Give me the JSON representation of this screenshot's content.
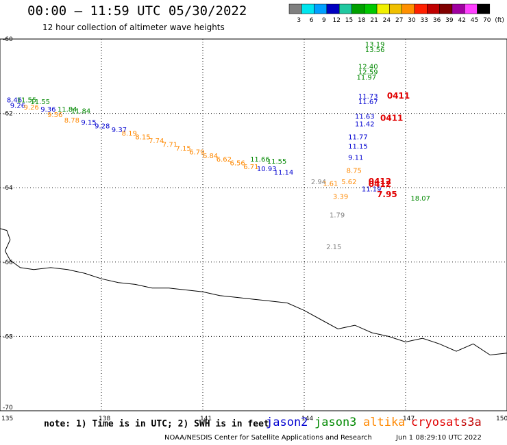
{
  "header": {
    "title": "00:00 – 11:59 UTC 05/30/2022",
    "subtitle": "12 hour collection of altimeter wave heights"
  },
  "colorbar": {
    "labels": [
      "3",
      "6",
      "9",
      "12",
      "15",
      "18",
      "21",
      "24",
      "27",
      "30",
      "33",
      "36",
      "39",
      "42",
      "45",
      "70",
      "(ft)"
    ],
    "colors": [
      "#808080",
      "#00e5ee",
      "#00a0ff",
      "#0000c0",
      "#20c8a0",
      "#00a000",
      "#00c800",
      "#f0f000",
      "#f0c000",
      "#ff9000",
      "#ff2000",
      "#c00000",
      "#800000",
      "#a000a0",
      "#ff40ff",
      "#000000"
    ]
  },
  "footer": {
    "note": "note: 1) Time is in UTC; 2) SWH is in feet",
    "credit": "NOAA/NESDIS Center for Satellite Applications and Research",
    "timestamp": "Jun  1 08:29:10 UTC 2022"
  },
  "satellites": [
    {
      "name": "jason2",
      "color": "#0000d0"
    },
    {
      "name": "jason3",
      "color": "#008800"
    },
    {
      "name": "altika",
      "color": "#ff8800"
    },
    {
      "name": "cryosat",
      "color": "#e00000"
    },
    {
      "name": "s3a",
      "color": "#c00000"
    }
  ],
  "chart_data": {
    "type": "scatter",
    "title": "00:00 – 11:59 UTC 05/30/2022",
    "subtitle": "12 hour collection of altimeter wave heights",
    "xlim": [
      135,
      150
    ],
    "ylim": [
      -70,
      -60
    ],
    "x_ticks": [
      135,
      138,
      141,
      144,
      147,
      150
    ],
    "y_ticks": [
      -60,
      -62,
      -64,
      -66,
      -68,
      -70
    ],
    "grid": true,
    "coastline": [
      [
        135,
        -65.1
      ],
      [
        135.2,
        -65.15
      ],
      [
        135.3,
        -65.4
      ],
      [
        135.15,
        -65.7
      ],
      [
        135.3,
        -65.95
      ],
      [
        135.6,
        -66.15
      ],
      [
        136.0,
        -66.2
      ],
      [
        136.5,
        -66.15
      ],
      [
        137.0,
        -66.2
      ],
      [
        137.5,
        -66.3
      ],
      [
        138.0,
        -66.45
      ],
      [
        138.5,
        -66.55
      ],
      [
        139.0,
        -66.6
      ],
      [
        139.5,
        -66.7
      ],
      [
        140.0,
        -66.7
      ],
      [
        140.5,
        -66.75
      ],
      [
        141.0,
        -66.8
      ],
      [
        141.5,
        -66.9
      ],
      [
        142.0,
        -66.95
      ],
      [
        142.5,
        -67.0
      ],
      [
        143.0,
        -67.05
      ],
      [
        143.5,
        -67.1
      ],
      [
        144.0,
        -67.3
      ],
      [
        144.5,
        -67.55
      ],
      [
        145.0,
        -67.8
      ],
      [
        145.5,
        -67.7
      ],
      [
        146.0,
        -67.9
      ],
      [
        146.5,
        -68.0
      ],
      [
        147.0,
        -68.15
      ],
      [
        147.5,
        -68.05
      ],
      [
        148.0,
        -68.2
      ],
      [
        148.5,
        -68.4
      ],
      [
        149.0,
        -68.2
      ],
      [
        149.5,
        -68.5
      ],
      [
        150.0,
        -68.45
      ]
    ],
    "points": [
      {
        "x": 135.2,
        "y": -61.7,
        "label": "8.46",
        "sat": "jason2"
      },
      {
        "x": 135.5,
        "y": -61.7,
        "label": "11.55",
        "sat": "jason3"
      },
      {
        "x": 135.9,
        "y": -61.75,
        "label": "11.55",
        "sat": "jason3"
      },
      {
        "x": 135.3,
        "y": -61.85,
        "label": "9.26",
        "sat": "jason2"
      },
      {
        "x": 135.7,
        "y": -61.9,
        "label": "9.26",
        "sat": "altika"
      },
      {
        "x": 136.2,
        "y": -61.95,
        "label": "9.36",
        "sat": "jason2"
      },
      {
        "x": 136.7,
        "y": -61.95,
        "label": "11.84",
        "sat": "jason3"
      },
      {
        "x": 137.1,
        "y": -62.0,
        "label": "11.84",
        "sat": "jason3"
      },
      {
        "x": 136.4,
        "y": -62.1,
        "label": "9.56",
        "sat": "altika"
      },
      {
        "x": 136.9,
        "y": -62.25,
        "label": "8.78",
        "sat": "altika"
      },
      {
        "x": 137.4,
        "y": -62.3,
        "label": "9.15",
        "sat": "jason2"
      },
      {
        "x": 137.8,
        "y": -62.4,
        "label": "9.28",
        "sat": "jason2"
      },
      {
        "x": 138.3,
        "y": -62.5,
        "label": "9.37",
        "sat": "jason2"
      },
      {
        "x": 138.6,
        "y": -62.6,
        "label": "8.19",
        "sat": "altika"
      },
      {
        "x": 139.0,
        "y": -62.7,
        "label": "8.15",
        "sat": "altika"
      },
      {
        "x": 139.4,
        "y": -62.8,
        "label": "7.74",
        "sat": "altika"
      },
      {
        "x": 139.8,
        "y": -62.9,
        "label": "7.71",
        "sat": "altika"
      },
      {
        "x": 140.2,
        "y": -63.0,
        "label": "7.15",
        "sat": "altika"
      },
      {
        "x": 140.6,
        "y": -63.1,
        "label": "6.79",
        "sat": "altika"
      },
      {
        "x": 141.0,
        "y": -63.2,
        "label": "6.84",
        "sat": "altika"
      },
      {
        "x": 141.4,
        "y": -63.3,
        "label": "6.62",
        "sat": "altika"
      },
      {
        "x": 141.8,
        "y": -63.4,
        "label": "6.56",
        "sat": "altika"
      },
      {
        "x": 142.2,
        "y": -63.5,
        "label": "6.71",
        "sat": "altika"
      },
      {
        "x": 142.6,
        "y": -63.55,
        "label": "10.93",
        "sat": "jason2"
      },
      {
        "x": 143.1,
        "y": -63.65,
        "label": "11.14",
        "sat": "jason2"
      },
      {
        "x": 142.4,
        "y": -63.3,
        "label": "11.66",
        "sat": "jason3"
      },
      {
        "x": 142.9,
        "y": -63.35,
        "label": "11.55",
        "sat": "jason3"
      },
      {
        "x": 145.8,
        "y": -60.2,
        "label": "13.19",
        "sat": "jason3"
      },
      {
        "x": 145.8,
        "y": -60.35,
        "label": "13.56",
        "sat": "jason3"
      },
      {
        "x": 145.6,
        "y": -60.8,
        "label": "12.40",
        "sat": "jason3"
      },
      {
        "x": 145.6,
        "y": -60.95,
        "label": "12.59",
        "sat": "jason3"
      },
      {
        "x": 145.55,
        "y": -61.1,
        "label": "11.97",
        "sat": "jason3"
      },
      {
        "x": 145.6,
        "y": -61.6,
        "label": "11.73",
        "sat": "jason2"
      },
      {
        "x": 145.6,
        "y": -61.75,
        "label": "11.67",
        "sat": "jason2"
      },
      {
        "x": 146.45,
        "y": -61.6,
        "label": "0411",
        "sat": "cryosat"
      },
      {
        "x": 145.5,
        "y": -62.15,
        "label": "11.63",
        "sat": "jason2"
      },
      {
        "x": 145.5,
        "y": -62.35,
        "label": "11.42",
        "sat": "jason2"
      },
      {
        "x": 146.25,
        "y": -62.2,
        "label": "0411",
        "sat": "cryosat"
      },
      {
        "x": 145.3,
        "y": -62.7,
        "label": "11.77",
        "sat": "jason2"
      },
      {
        "x": 145.3,
        "y": -62.95,
        "label": "11.15",
        "sat": "jason2"
      },
      {
        "x": 145.3,
        "y": -63.25,
        "label": "9.11",
        "sat": "jason2"
      },
      {
        "x": 145.25,
        "y": -63.6,
        "label": "8.75",
        "sat": "altika"
      },
      {
        "x": 144.2,
        "y": -63.9,
        "label": "2.94",
        "sat": "other"
      },
      {
        "x": 144.55,
        "y": -63.95,
        "label": "1.61",
        "sat": "altika"
      },
      {
        "x": 145.1,
        "y": -63.9,
        "label": "5.62",
        "sat": "altika"
      },
      {
        "x": 145.9,
        "y": -63.9,
        "label": "0412",
        "sat": "cryosat"
      },
      {
        "x": 145.9,
        "y": -63.98,
        "label": "0412",
        "sat": "cryosat"
      },
      {
        "x": 145.7,
        "y": -64.1,
        "label": "11.19",
        "sat": "jason2"
      },
      {
        "x": 146.15,
        "y": -64.25,
        "label": "7.95",
        "sat": "cryosat"
      },
      {
        "x": 147.15,
        "y": -64.35,
        "label": "18.07",
        "sat": "jason3"
      },
      {
        "x": 144.85,
        "y": -64.3,
        "label": "3.39",
        "sat": "altika"
      },
      {
        "x": 144.75,
        "y": -64.8,
        "label": "1.79",
        "sat": "other"
      },
      {
        "x": 144.65,
        "y": -65.65,
        "label": "2.15",
        "sat": "other"
      }
    ]
  }
}
